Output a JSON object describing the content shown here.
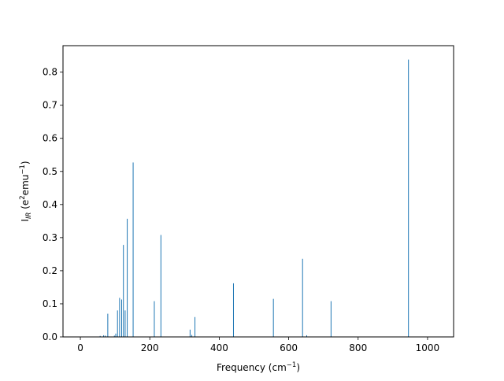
{
  "chart_data": {
    "type": "bar",
    "title": "",
    "xlabel": "Frequency (cm",
    "xlabel_sup": "−1",
    "xlabel_end": ")",
    "ylabel": {
      "prefix": "I",
      "sub": "IR",
      "mid": " (e",
      "sup1": "2",
      "mid2": "emu",
      "sup2": "−1",
      "end": ")"
    },
    "xlim": [
      -50,
      1075
    ],
    "ylim": [
      0,
      0.88
    ],
    "x_ticks": [
      0,
      200,
      400,
      600,
      800,
      1000
    ],
    "x_tick_labels": [
      "0",
      "200",
      "400",
      "600",
      "800",
      "1000"
    ],
    "y_ticks": [
      0.0,
      0.1,
      0.2,
      0.3,
      0.4,
      0.5,
      0.6,
      0.7,
      0.8
    ],
    "y_tick_labels": [
      "0.0",
      "0.1",
      "0.2",
      "0.3",
      "0.4",
      "0.5",
      "0.6",
      "0.7",
      "0.8"
    ],
    "grid": false,
    "bar_color": "#1f77b4",
    "bars": [
      {
        "x": 57,
        "y": 0.003
      },
      {
        "x": 67,
        "y": 0.005
      },
      {
        "x": 72,
        "y": 0.004
      },
      {
        "x": 79,
        "y": 0.07
      },
      {
        "x": 98,
        "y": 0.004
      },
      {
        "x": 102,
        "y": 0.01
      },
      {
        "x": 107,
        "y": 0.08
      },
      {
        "x": 113,
        "y": 0.118
      },
      {
        "x": 119,
        "y": 0.113
      },
      {
        "x": 124,
        "y": 0.278
      },
      {
        "x": 129,
        "y": 0.08
      },
      {
        "x": 135,
        "y": 0.357
      },
      {
        "x": 152,
        "y": 0.527
      },
      {
        "x": 213,
        "y": 0.108
      },
      {
        "x": 232,
        "y": 0.308
      },
      {
        "x": 316,
        "y": 0.022
      },
      {
        "x": 321,
        "y": 0.006
      },
      {
        "x": 330,
        "y": 0.06
      },
      {
        "x": 441,
        "y": 0.162
      },
      {
        "x": 556,
        "y": 0.115
      },
      {
        "x": 640,
        "y": 0.236
      },
      {
        "x": 652,
        "y": 0.005
      },
      {
        "x": 722,
        "y": 0.108
      },
      {
        "x": 945,
        "y": 0.838
      }
    ]
  }
}
